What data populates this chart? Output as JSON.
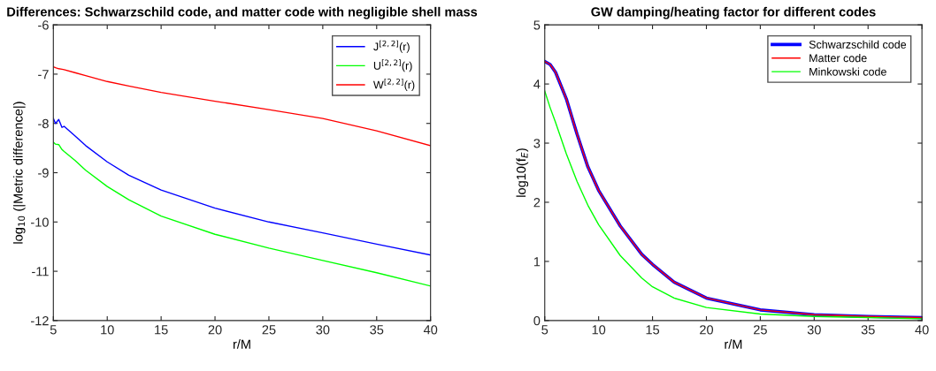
{
  "chart_data": [
    {
      "type": "line",
      "title": "Differences: Schwarzschild code, and matter code with negligible shell mass",
      "xlabel": "r/M",
      "ylabel": "log$_{10}$ (|Metric difference|)",
      "x": [
        5,
        5.2,
        5.5,
        5.8,
        6,
        7,
        8,
        10,
        12,
        15,
        20,
        25,
        30,
        35,
        40
      ],
      "xlim": [
        5,
        40
      ],
      "xticks": [
        5,
        10,
        15,
        20,
        25,
        30,
        35,
        40
      ],
      "ylim": [
        -12,
        -6
      ],
      "yticks": [
        -12,
        -11,
        -10,
        -9,
        -8,
        -7,
        -6
      ],
      "legend": "top right",
      "grid": false,
      "series": [
        {
          "name": "J$^{[2,2]}$(r)",
          "color": "#0000ff",
          "values": [
            -7.9,
            -8.0,
            -7.92,
            -8.08,
            -8.06,
            -8.25,
            -8.45,
            -8.78,
            -9.05,
            -9.35,
            -9.72,
            -10.0,
            -10.22,
            -10.45,
            -10.67
          ]
        },
        {
          "name": "U$^{[2,2]}$(r)",
          "color": "#00ff00",
          "values": [
            -8.38,
            -8.42,
            -8.43,
            -8.53,
            -8.57,
            -8.75,
            -8.95,
            -9.28,
            -9.55,
            -9.88,
            -10.25,
            -10.53,
            -10.78,
            -11.03,
            -11.3
          ]
        },
        {
          "name": "W$^{[2,2]}$(r)",
          "color": "#ff0000",
          "values": [
            -6.85,
            -6.87,
            -6.89,
            -6.9,
            -6.91,
            -6.97,
            -7.03,
            -7.15,
            -7.24,
            -7.37,
            -7.55,
            -7.72,
            -7.9,
            -8.15,
            -8.45
          ]
        }
      ]
    },
    {
      "type": "line",
      "title": "GW damping/heating factor for different codes",
      "xlabel": "r/M",
      "ylabel": "log10(f$_{E}$)",
      "x": [
        5,
        5.5,
        6,
        7,
        8,
        9,
        10,
        12,
        14,
        15,
        17,
        20,
        25,
        30,
        35,
        40
      ],
      "xlim": [
        5,
        40
      ],
      "xticks": [
        5,
        10,
        15,
        20,
        25,
        30,
        35,
        40
      ],
      "ylim": [
        0,
        5
      ],
      "yticks": [
        0,
        1,
        2,
        3,
        4,
        5
      ],
      "legend": "top right",
      "grid": false,
      "series": [
        {
          "name": "Schwarzschild code",
          "color": "#0000ff",
          "values": [
            4.38,
            4.33,
            4.2,
            3.75,
            3.15,
            2.6,
            2.2,
            1.6,
            1.12,
            0.95,
            0.65,
            0.38,
            0.18,
            0.1,
            0.07,
            0.05
          ]
        },
        {
          "name": "Matter code",
          "color": "#ff0000",
          "values": [
            4.38,
            4.33,
            4.2,
            3.75,
            3.15,
            2.6,
            2.2,
            1.6,
            1.12,
            0.95,
            0.65,
            0.38,
            0.18,
            0.1,
            0.07,
            0.05
          ]
        },
        {
          "name": "Minkowski code",
          "color": "#00ff00",
          "values": [
            3.88,
            3.6,
            3.35,
            2.82,
            2.35,
            1.95,
            1.62,
            1.1,
            0.72,
            0.57,
            0.38,
            0.22,
            0.11,
            0.07,
            0.05,
            0.03
          ]
        }
      ]
    }
  ]
}
